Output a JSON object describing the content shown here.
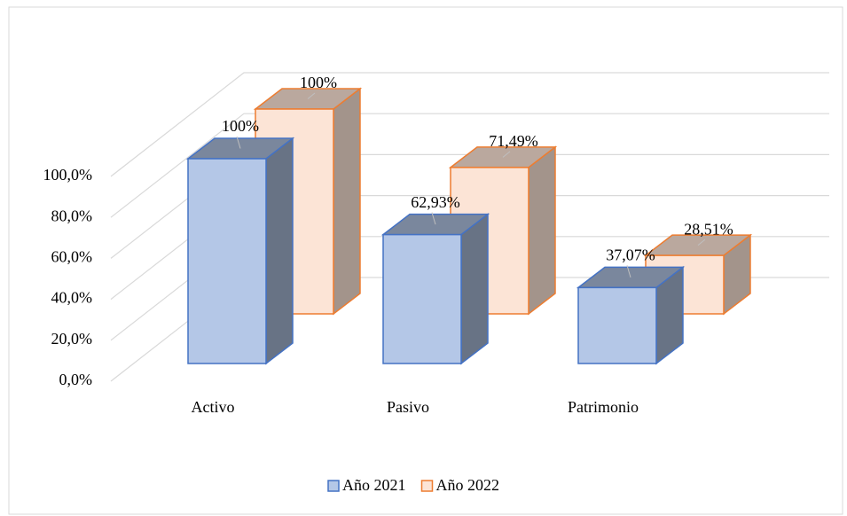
{
  "chart_data": {
    "type": "bar3d",
    "categories": [
      "Activo",
      "Pasivo",
      "Patrimonio"
    ],
    "series": [
      {
        "name": "Año 2021",
        "color": "#b4c7e7",
        "edge": "#4472c4",
        "values": [
          100,
          62.93,
          37.07
        ],
        "value_labels": [
          "100%",
          "62,93%",
          "37,07%"
        ]
      },
      {
        "name": "Año 2022",
        "color": "#fce4d6",
        "edge": "#ed7d31",
        "values": [
          100,
          71.49,
          28.51
        ],
        "value_labels": [
          "100%",
          "71,49%",
          "28,51%"
        ]
      }
    ],
    "ylim": [
      0,
      100
    ],
    "yticks": [
      {
        "value": 0,
        "label": "0,0%"
      },
      {
        "value": 20,
        "label": "20,0%"
      },
      {
        "value": 40,
        "label": "40,0%"
      },
      {
        "value": 60,
        "label": "60,0%"
      },
      {
        "value": 80,
        "label": "80,0%"
      },
      {
        "value": 100,
        "label": "100,0%"
      }
    ],
    "grid": true,
    "legend": "bottom"
  }
}
